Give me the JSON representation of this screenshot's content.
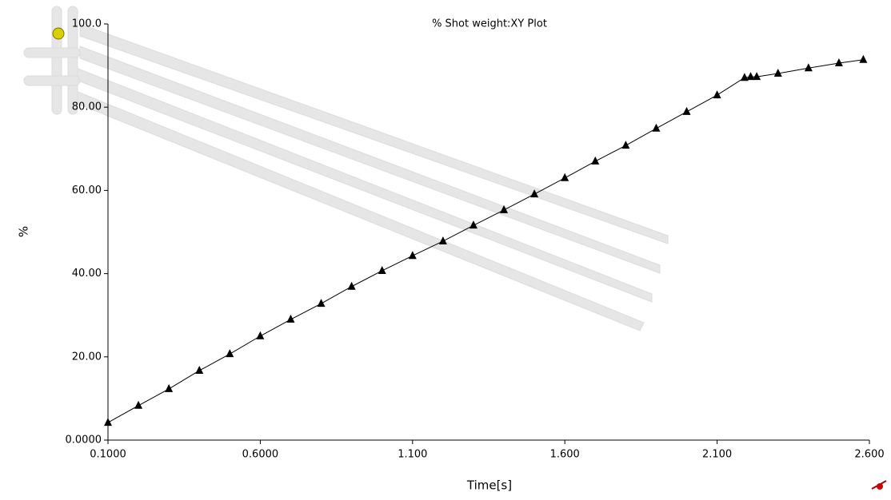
{
  "chart_data": {
    "type": "line",
    "title": "% Shot weight:XY Plot",
    "x_label": "Time[s]",
    "y_label": "%",
    "x": [
      0.1,
      0.2,
      0.3,
      0.4,
      0.5,
      0.6,
      0.7,
      0.8,
      0.9,
      1.0,
      1.1,
      1.2,
      1.3,
      1.4,
      1.5,
      1.6,
      1.7,
      1.8,
      1.9,
      2.0,
      2.1,
      2.19,
      2.21,
      2.23,
      2.3,
      2.4,
      2.5,
      2.58
    ],
    "series": [
      {
        "color": "#000000",
        "marker": "triangle",
        "values": [
          4.2,
          8.3,
          12.3,
          16.7,
          20.7,
          25.0,
          29.0,
          32.8,
          36.9,
          40.7,
          44.3,
          47.8,
          51.6,
          55.3,
          59.1,
          63.0,
          67.0,
          70.8,
          74.9,
          78.9,
          82.9,
          87.1,
          87.3,
          87.3,
          88.1,
          89.4,
          90.6,
          91.4
        ]
      }
    ],
    "xlim": [
      0.1,
      2.6
    ],
    "xticks": [
      {
        "value": 0.1,
        "label": "0.1000"
      },
      {
        "value": 0.6,
        "label": "0.6000"
      },
      {
        "value": 1.1,
        "label": "1.100"
      },
      {
        "value": 1.6,
        "label": "1.600"
      },
      {
        "value": 2.1,
        "label": "2.100"
      },
      {
        "value": 2.6,
        "label": "2.600"
      }
    ],
    "ylim": [
      0,
      100
    ],
    "yticks": [
      {
        "value": 0,
        "label": "0.0000"
      },
      {
        "value": 20,
        "label": "20.00"
      },
      {
        "value": 40,
        "label": "40.00"
      },
      {
        "value": 60,
        "label": "60.00"
      },
      {
        "value": 80,
        "label": "80.00"
      },
      {
        "value": 100,
        "label": "100.0"
      }
    ],
    "grid": false
  }
}
